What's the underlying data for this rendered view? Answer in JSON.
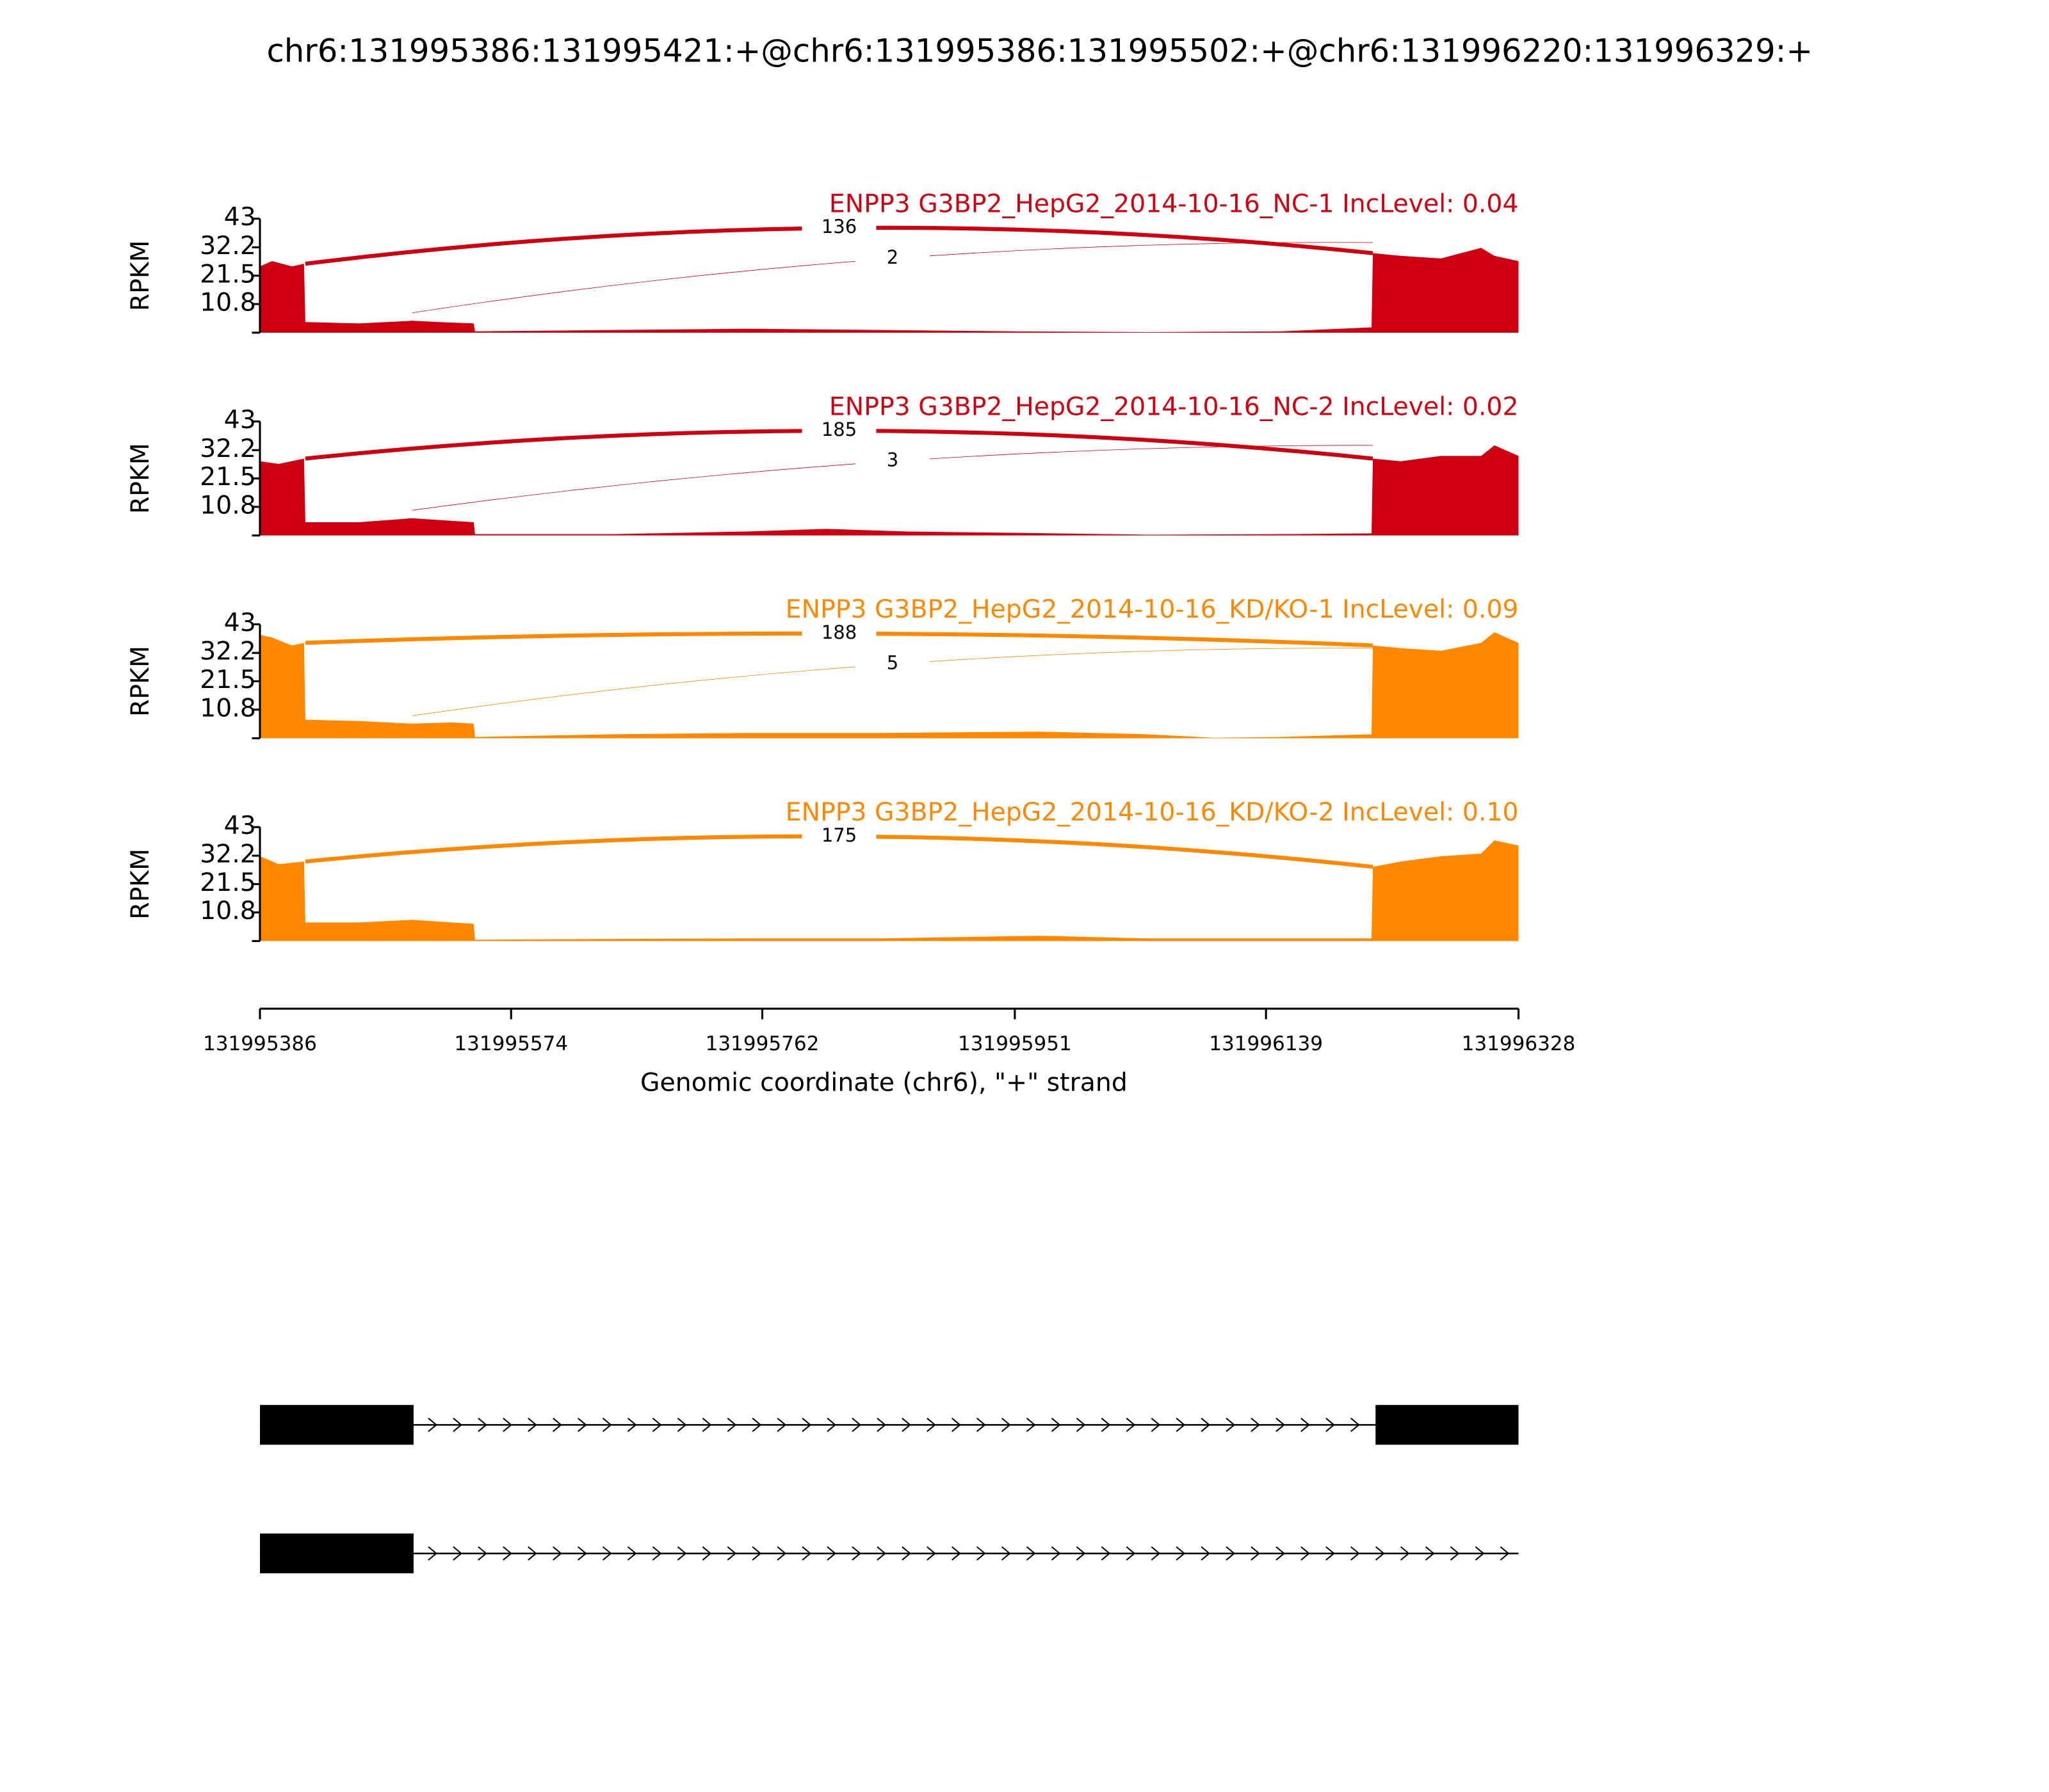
{
  "title": "chr6:131995386:131995421:+@chr6:131995386:131995502:+@chr6:131996220:131996329:+",
  "chart_data": [
    {
      "type": "area",
      "title": "ENPP3 G3BP2_HepG2_2014-10-16_NC-1 IncLevel: 0.04",
      "color": "#cc0011",
      "y_label": "RPKM",
      "xlim": [
        131995386,
        131996328
      ],
      "ylim": [
        0,
        43
      ],
      "yticks": [
        10.8,
        21.5,
        32.2,
        43
      ],
      "x": [
        131995386,
        131995395,
        131995410,
        131995419,
        131995420,
        131995460,
        131995500,
        131995520,
        131995546,
        131995547,
        131995650,
        131995750,
        131995850,
        131995950,
        131996050,
        131996150,
        131996218,
        131996219,
        131996240,
        131996270,
        131996300,
        131996310,
        131996328
      ],
      "values": [
        25,
        27,
        25,
        26,
        4,
        3.5,
        4.5,
        4,
        3.5,
        0.5,
        1,
        1.5,
        1,
        0.5,
        0.2,
        0.5,
        2,
        30,
        29,
        28,
        32,
        29,
        27
      ],
      "junctions": [
        {
          "start": 131995420,
          "end": 131996219,
          "count": 136
        },
        {
          "start": 131995500,
          "end": 131996219,
          "count": 2
        }
      ]
    },
    {
      "type": "area",
      "title": "ENPP3 G3BP2_HepG2_2014-10-16_NC-2 IncLevel: 0.02",
      "color": "#cc0011",
      "y_label": "RPKM",
      "xlim": [
        131995386,
        131996328
      ],
      "ylim": [
        0,
        43
      ],
      "yticks": [
        10.8,
        21.5,
        32.2,
        43
      ],
      "x": [
        131995386,
        131995400,
        131995419,
        131995420,
        131995460,
        131995500,
        131995530,
        131995546,
        131995547,
        131995650,
        131995750,
        131995810,
        131995870,
        131995950,
        131996050,
        131996150,
        131996218,
        131996219,
        131996240,
        131996270,
        131996300,
        131996310,
        131996328
      ],
      "values": [
        28,
        27,
        29,
        5,
        5,
        6.5,
        5.5,
        5,
        0.5,
        0.5,
        1.5,
        2.5,
        1.5,
        1,
        0.3,
        0.5,
        0.8,
        29,
        28,
        30,
        30,
        34,
        30
      ],
      "junctions": [
        {
          "start": 131995420,
          "end": 131996219,
          "count": 185
        },
        {
          "start": 131995500,
          "end": 131996219,
          "count": 3
        }
      ]
    },
    {
      "type": "area",
      "title": "ENPP3 G3BP2_HepG2_2014-10-16_KD/KO-1 IncLevel: 0.09",
      "color": "#ff8800",
      "y_label": "RPKM",
      "xlim": [
        131995386,
        131996328
      ],
      "ylim": [
        0,
        43
      ],
      "yticks": [
        10.8,
        21.5,
        32.2,
        43
      ],
      "x": [
        131995386,
        131995395,
        131995410,
        131995419,
        131995420,
        131995460,
        131995500,
        131995530,
        131995546,
        131995547,
        131995650,
        131995750,
        131995850,
        131995970,
        131996050,
        131996100,
        131996150,
        131996218,
        131996219,
        131996240,
        131996270,
        131996300,
        131996310,
        131996328
      ],
      "values": [
        39,
        38,
        35,
        36,
        7,
        6.5,
        5.5,
        6,
        5.5,
        0.5,
        1.5,
        2,
        2,
        2.5,
        1.5,
        0.2,
        0.5,
        1.5,
        35,
        34,
        33,
        36,
        40,
        36
      ],
      "junctions": [
        {
          "start": 131995420,
          "end": 131996219,
          "count": 188
        },
        {
          "start": 131995500,
          "end": 131996219,
          "count": 5
        }
      ]
    },
    {
      "type": "area",
      "title": "ENPP3 G3BP2_HepG2_2014-10-16_KD/KO-2 IncLevel: 0.10",
      "color": "#ff8800",
      "y_label": "RPKM",
      "xlim": [
        131995386,
        131996328
      ],
      "ylim": [
        0,
        43
      ],
      "yticks": [
        10.8,
        21.5,
        32.2,
        43
      ],
      "xticks": [
        131995386,
        131995574,
        131995762,
        131995951,
        131996139,
        131996328
      ],
      "x_label": "Genomic coordinate (chr6), \"+\" strand",
      "x": [
        131995386,
        131995400,
        131995419,
        131995420,
        131995460,
        131995500,
        131995530,
        131995546,
        131995547,
        131995650,
        131995750,
        131995850,
        131995970,
        131996050,
        131996150,
        131996218,
        131996219,
        131996240,
        131996270,
        131996300,
        131996310,
        131996328
      ],
      "values": [
        32,
        29,
        30,
        7,
        7,
        8,
        7,
        6.5,
        0.5,
        0.8,
        1,
        1,
        2,
        1,
        1,
        1,
        28,
        30,
        32,
        33,
        38,
        36
      ],
      "junctions": [
        {
          "start": 131995420,
          "end": 131996219,
          "count": 175
        }
      ]
    }
  ],
  "transcripts": [
    {
      "start": 131995386,
      "end": 131996328,
      "exons": [
        [
          131995386,
          131995501
        ],
        [
          131996221,
          131996328
        ]
      ]
    },
    {
      "start": 131995386,
      "end": 131996328,
      "exons": [
        [
          131995386,
          131995501
        ]
      ]
    }
  ]
}
